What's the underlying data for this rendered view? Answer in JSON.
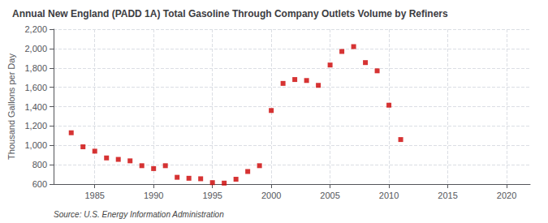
{
  "chart_data": {
    "type": "scatter",
    "title": "Annual New England (PADD 1A) Total Gasoline Through Company Outlets Volume by Refiners",
    "ylabel": "Thousand Gallons per Day",
    "source": "Source: U.S. Energy Information Administration",
    "color": "#cc0000",
    "marker": "square",
    "grid": true,
    "x": [
      1983,
      1984,
      1985,
      1986,
      1987,
      1988,
      1989,
      1990,
      1991,
      1992,
      1993,
      1994,
      1995,
      1996,
      1997,
      1998,
      1999,
      2000,
      2001,
      2002,
      2003,
      2004,
      2005,
      2006,
      2007,
      2008,
      2009,
      2010,
      2011
    ],
    "values": [
      1130,
      985,
      940,
      870,
      855,
      840,
      790,
      760,
      790,
      670,
      660,
      655,
      615,
      610,
      650,
      730,
      790,
      1360,
      1640,
      1680,
      1670,
      1620,
      1830,
      1970,
      2020,
      1855,
      1770,
      1415,
      1060
    ],
    "xlim": [
      1981.5,
      2022
    ],
    "xticks": [
      1985,
      1990,
      1995,
      2000,
      2005,
      2010,
      2015,
      2020
    ],
    "ylim": [
      600,
      2200
    ],
    "yticks": [
      600,
      800,
      {
        "value": 1000,
        "label": "1,000"
      },
      {
        "value": 1200,
        "label": "1,200"
      },
      {
        "value": 1400,
        "label": "1,400"
      },
      {
        "value": 1600,
        "label": "1,600"
      },
      {
        "value": 1800,
        "label": "1,800"
      },
      {
        "value": 2000,
        "label": "2,000"
      },
      {
        "value": 2200,
        "label": "2,200"
      }
    ]
  }
}
